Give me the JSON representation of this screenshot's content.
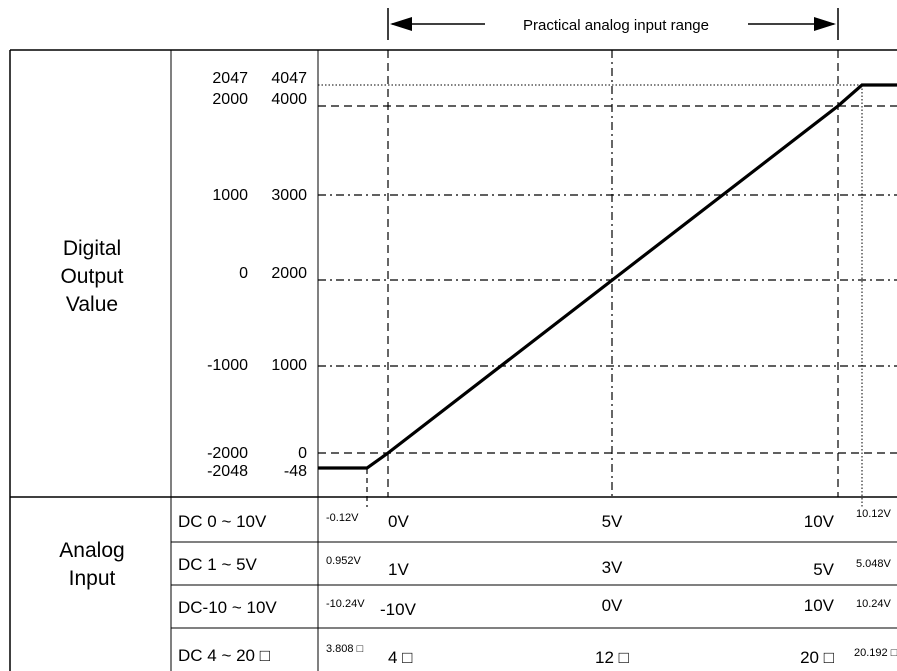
{
  "range_label": "Practical analog input range",
  "row_header_output": [
    "Digital",
    "Output",
    "Value"
  ],
  "row_header_input": [
    "Analog",
    "Input"
  ],
  "y_labels_signed": [
    "2047",
    "2000",
    "1000",
    "0",
    "-1000",
    "-2000",
    "-2048"
  ],
  "y_labels_unsigned": [
    "4047",
    "4000",
    "3000",
    "2000",
    "1000",
    "0",
    "-48"
  ],
  "input_rows": [
    {
      "name": "DC 0 ~ 10V",
      "low_ext": "-0.12V",
      "min": "0V",
      "mid": "5V",
      "max": "10V",
      "high_ext": "10.12V"
    },
    {
      "name": "DC 1 ~ 5V",
      "low_ext": "0.952V",
      "min": "1V",
      "mid": "3V",
      "max": "5V",
      "high_ext": "5.048V"
    },
    {
      "name": "DC-10 ~ 10V",
      "low_ext": "-10.24V",
      "min": "-10V",
      "mid": "0V",
      "max": "10V",
      "high_ext": "10.24V"
    },
    {
      "name": "DC 4 ~ 20 □",
      "low_ext": "3.808 □",
      "min": "4 □",
      "mid": "12 □",
      "max": "20 □",
      "high_ext": "20.192 □"
    }
  ],
  "chart_data": {
    "type": "line",
    "xlabel": "",
    "ylabel": "",
    "series": [
      {
        "x": [
          -0.12,
          0,
          10,
          10.12
        ],
        "y": [
          -48,
          0,
          4000,
          4047
        ]
      }
    ]
  }
}
